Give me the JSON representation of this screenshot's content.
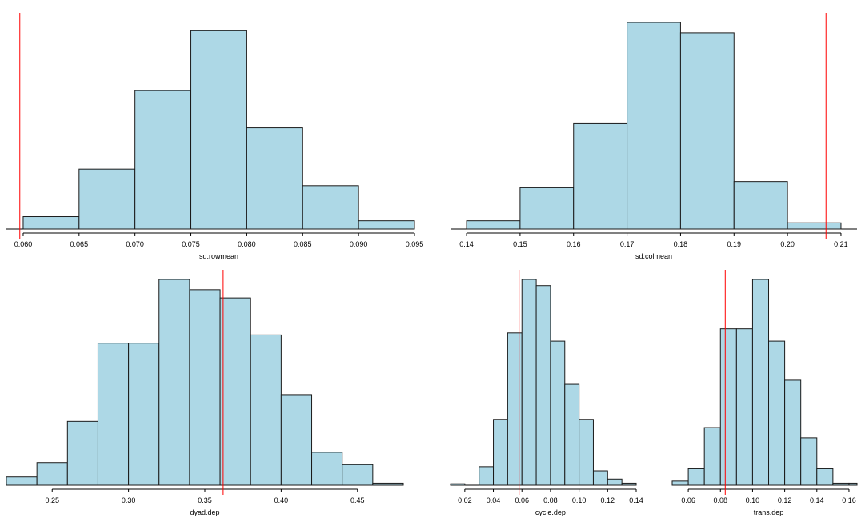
{
  "chart_data": [
    {
      "id": "rowmean",
      "type": "bar",
      "xlabel": "sd.rowmean",
      "xlim": [
        0.0585,
        0.095
      ],
      "ylim": [
        0,
        100
      ],
      "ticks": [
        0.06,
        0.065,
        0.07,
        0.075,
        0.08,
        0.085,
        0.09,
        0.095
      ],
      "tick_labels": [
        "0.060",
        "0.065",
        "0.070",
        "0.075",
        "0.080",
        "0.085",
        "0.090",
        "0.095"
      ],
      "bins": [
        {
          "x0": 0.06,
          "x1": 0.065,
          "value": 6
        },
        {
          "x0": 0.065,
          "x1": 0.07,
          "value": 29
        },
        {
          "x0": 0.07,
          "x1": 0.075,
          "value": 67
        },
        {
          "x0": 0.075,
          "x1": 0.08,
          "value": 96
        },
        {
          "x0": 0.08,
          "x1": 0.085,
          "value": 49
        },
        {
          "x0": 0.085,
          "x1": 0.09,
          "value": 21
        },
        {
          "x0": 0.09,
          "x1": 0.095,
          "value": 4
        }
      ],
      "observed": 0.0597,
      "bar_color": "#add8e6",
      "line_color": "#ff0000"
    },
    {
      "id": "colmean",
      "type": "bar",
      "xlabel": "sd.colmean",
      "xlim": [
        0.137,
        0.213
      ],
      "ylim": [
        0,
        100
      ],
      "ticks": [
        0.14,
        0.15,
        0.16,
        0.17,
        0.18,
        0.19,
        0.2,
        0.21
      ],
      "tick_labels": [
        "0.14",
        "0.15",
        "0.16",
        "0.17",
        "0.18",
        "0.19",
        "0.20",
        "0.21"
      ],
      "bins": [
        {
          "x0": 0.14,
          "x1": 0.15,
          "value": 4
        },
        {
          "x0": 0.15,
          "x1": 0.16,
          "value": 20
        },
        {
          "x0": 0.16,
          "x1": 0.17,
          "value": 51
        },
        {
          "x0": 0.17,
          "x1": 0.18,
          "value": 100
        },
        {
          "x0": 0.18,
          "x1": 0.19,
          "value": 95
        },
        {
          "x0": 0.19,
          "x1": 0.2,
          "value": 23
        },
        {
          "x0": 0.2,
          "x1": 0.21,
          "value": 3
        }
      ],
      "observed": 0.2072,
      "bar_color": "#add8e6",
      "line_color": "#ff0000"
    },
    {
      "id": "dyad",
      "type": "bar",
      "xlabel": "dyad.dep",
      "xlim": [
        0.22,
        0.48
      ],
      "ylim": [
        0,
        100
      ],
      "ticks": [
        0.25,
        0.3,
        0.35,
        0.4,
        0.45
      ],
      "tick_labels": [
        "0.25",
        "0.30",
        "0.35",
        "0.40",
        "0.45"
      ],
      "bins": [
        {
          "x0": 0.22,
          "x1": 0.24,
          "value": 4
        },
        {
          "x0": 0.24,
          "x1": 0.26,
          "value": 11
        },
        {
          "x0": 0.26,
          "x1": 0.28,
          "value": 31
        },
        {
          "x0": 0.28,
          "x1": 0.3,
          "value": 69
        },
        {
          "x0": 0.3,
          "x1": 0.32,
          "value": 69
        },
        {
          "x0": 0.32,
          "x1": 0.34,
          "value": 100
        },
        {
          "x0": 0.34,
          "x1": 0.36,
          "value": 95
        },
        {
          "x0": 0.36,
          "x1": 0.38,
          "value": 91
        },
        {
          "x0": 0.38,
          "x1": 0.4,
          "value": 73
        },
        {
          "x0": 0.4,
          "x1": 0.42,
          "value": 44
        },
        {
          "x0": 0.42,
          "x1": 0.44,
          "value": 16
        },
        {
          "x0": 0.44,
          "x1": 0.46,
          "value": 10
        },
        {
          "x0": 0.46,
          "x1": 0.48,
          "value": 1
        }
      ],
      "observed": 0.362,
      "bar_color": "#add8e6",
      "line_color": "#ff0000"
    },
    {
      "id": "cycle",
      "type": "bar",
      "xlabel": "cycle.dep",
      "xlim": [
        0.01,
        0.14
      ],
      "ylim": [
        0,
        100
      ],
      "ticks": [
        0.02,
        0.04,
        0.06,
        0.08,
        0.1,
        0.12,
        0.14
      ],
      "tick_labels": [
        "0.02",
        "0.04",
        "0.06",
        "0.08",
        "0.10",
        "0.12",
        "0.14"
      ],
      "bins": [
        {
          "x0": 0.01,
          "x1": 0.02,
          "value": 0.7
        },
        {
          "x0": 0.03,
          "x1": 0.04,
          "value": 9
        },
        {
          "x0": 0.04,
          "x1": 0.05,
          "value": 32
        },
        {
          "x0": 0.05,
          "x1": 0.06,
          "value": 74
        },
        {
          "x0": 0.06,
          "x1": 0.07,
          "value": 100
        },
        {
          "x0": 0.07,
          "x1": 0.08,
          "value": 97
        },
        {
          "x0": 0.08,
          "x1": 0.09,
          "value": 70
        },
        {
          "x0": 0.09,
          "x1": 0.1,
          "value": 49
        },
        {
          "x0": 0.1,
          "x1": 0.11,
          "value": 32
        },
        {
          "x0": 0.11,
          "x1": 0.12,
          "value": 7
        },
        {
          "x0": 0.12,
          "x1": 0.13,
          "value": 3
        },
        {
          "x0": 0.13,
          "x1": 0.14,
          "value": 1
        }
      ],
      "observed": 0.058,
      "bar_color": "#add8e6",
      "line_color": "#ff0000"
    },
    {
      "id": "trans",
      "type": "bar",
      "xlabel": "trans.dep",
      "xlim": [
        0.05,
        0.165
      ],
      "ylim": [
        0,
        100
      ],
      "ticks": [
        0.06,
        0.08,
        0.1,
        0.12,
        0.14,
        0.16
      ],
      "tick_labels": [
        "0.06",
        "0.08",
        "0.10",
        "0.12",
        "0.14",
        "0.16"
      ],
      "bins": [
        {
          "x0": 0.05,
          "x1": 0.06,
          "value": 2
        },
        {
          "x0": 0.06,
          "x1": 0.07,
          "value": 8
        },
        {
          "x0": 0.07,
          "x1": 0.08,
          "value": 28
        },
        {
          "x0": 0.08,
          "x1": 0.09,
          "value": 76
        },
        {
          "x0": 0.09,
          "x1": 0.1,
          "value": 76
        },
        {
          "x0": 0.1,
          "x1": 0.11,
          "value": 100
        },
        {
          "x0": 0.11,
          "x1": 0.12,
          "value": 70
        },
        {
          "x0": 0.12,
          "x1": 0.13,
          "value": 51
        },
        {
          "x0": 0.13,
          "x1": 0.14,
          "value": 23
        },
        {
          "x0": 0.14,
          "x1": 0.15,
          "value": 8
        },
        {
          "x0": 0.15,
          "x1": 0.16,
          "value": 1
        },
        {
          "x0": 0.16,
          "x1": 0.165,
          "value": 1
        }
      ],
      "observed": 0.083,
      "bar_color": "#add8e6",
      "line_color": "#ff0000"
    }
  ]
}
